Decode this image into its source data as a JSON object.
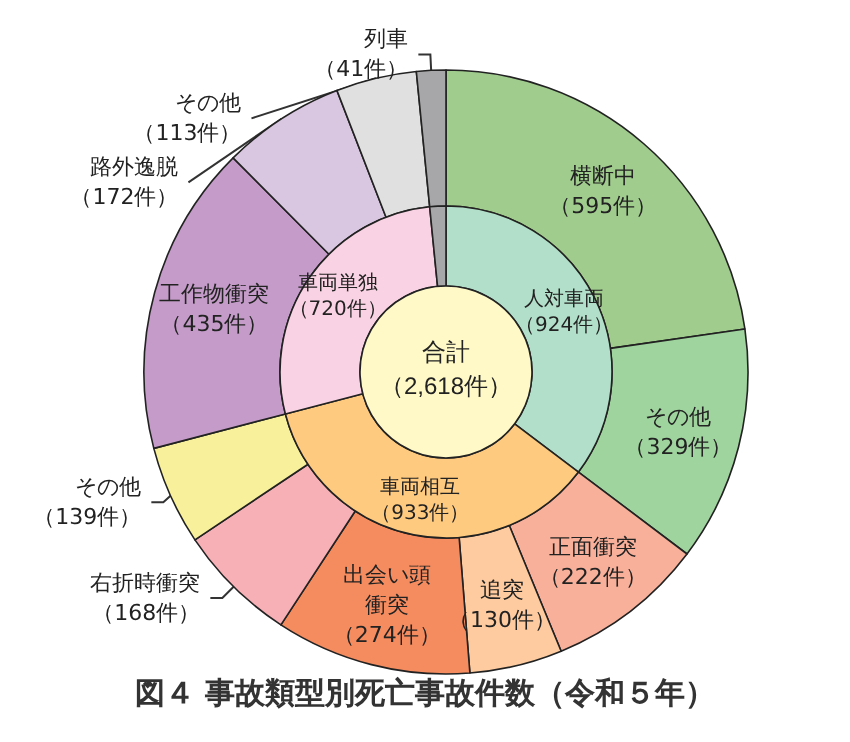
{
  "chart_data": [
    {
      "type": "donut",
      "title": "図４ 事故類型別死亡事故件数（令和５年）",
      "annotations": [
        "合計",
        "（2,618件）"
      ],
      "categories": [
        "人対車両",
        "車両相互",
        "車両単独",
        null
      ],
      "values": [
        924,
        933,
        720,
        41
      ],
      "value_labels": [
        "（924件）",
        "（933件）",
        "（720件）",
        null
      ],
      "colors": [
        "#b2dfc9",
        "#fdca7f",
        "#f9d3e3",
        "#a7a7a9"
      ]
    },
    {
      "type": "donut",
      "categories": [
        "横断中",
        "その他",
        "正面衝突",
        "追突",
        "出会い頭衝突",
        "右折時衝突",
        "その他",
        "工作物衝突",
        "路外逸脱",
        "その他",
        "列車"
      ],
      "values": [
        595,
        329,
        222,
        130,
        274,
        168,
        139,
        435,
        172,
        113,
        41
      ],
      "value_labels": [
        "（595件）",
        "（329件）",
        "（222件）",
        "（130件）",
        "（274件）",
        "（168件）",
        "（139件）",
        "（435件）",
        "（172件）",
        "（113件）",
        "（41件）"
      ],
      "colors": [
        "#a0cc8e",
        "#9fd49e",
        "#f8b09a",
        "#fdcb9f",
        "#f48c5f",
        "#f7b0b6",
        "#f8f09a",
        "#c59cc9",
        "#d9c6e0",
        "#e0e0e0",
        "#a7a7a9"
      ]
    }
  ]
}
